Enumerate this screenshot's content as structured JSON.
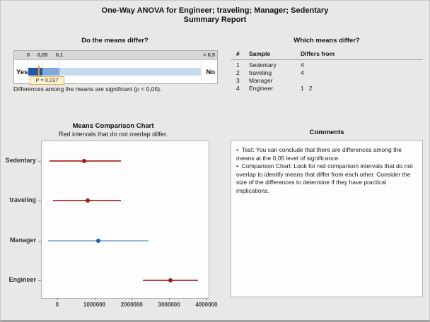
{
  "title": {
    "line1": "One-Way ANOVA for Engineer; traveling; Manager; Sedentary",
    "line2": "Summary Report"
  },
  "p_panel": {
    "title": "Do the means differ?",
    "ticks": [
      "0",
      "0,05",
      "0,1",
      "> 0,5"
    ],
    "yes_label": "Yes",
    "no_label": "No",
    "p_value": 0.037,
    "p_label": "P = 0,037",
    "caption": "Differences among the means are significant (p < 0,05).",
    "colors": {
      "significant": "#1e57a5",
      "marginal": "#7ea9d8",
      "not_significant": "#c7d9ee",
      "marker": "#ef9a1d"
    }
  },
  "differs_table": {
    "title": "Which means differ?",
    "columns": [
      "#",
      "Sample",
      "Differs from"
    ],
    "rows": [
      {
        "num": "1",
        "sample": "Sedentary",
        "differs": "4"
      },
      {
        "num": "2",
        "sample": "traveling",
        "differs": "4"
      },
      {
        "num": "3",
        "sample": "Manager",
        "differs": ""
      },
      {
        "num": "4",
        "sample": "Engineer",
        "differs": "1   2"
      }
    ]
  },
  "chart_data": {
    "type": "interval",
    "title": "Means Comparison Chart",
    "subtitle": "Red intervals that do not overlap differ.",
    "xlabel": "",
    "ylabel": "",
    "categories": [
      "Sedentary",
      "traveling",
      "Manager",
      "Engineer"
    ],
    "series": [
      {
        "name": "Sedentary",
        "mean": 730000,
        "ci": [
          -210000,
          1710000
        ],
        "differs": true
      },
      {
        "name": "traveling",
        "mean": 810000,
        "ci": [
          -100000,
          1710000
        ],
        "differs": true
      },
      {
        "name": "Manager",
        "mean": 1100000,
        "ci": [
          -250000,
          2440000
        ],
        "differs": false
      },
      {
        "name": "Engineer",
        "mean": 3040000,
        "ci": [
          2290000,
          3770000
        ],
        "differs": true
      }
    ],
    "x_ticks": [
      0,
      1000000,
      2000000,
      3000000,
      4000000
    ],
    "x_tick_labels": [
      "0",
      "1000000",
      "2000000",
      "3000000",
      "4000000"
    ],
    "xlim": [
      -430000,
      4040000
    ],
    "grid": false,
    "legend": false,
    "colors": {
      "differ_line": "#b2463d",
      "differ_dot": "#991f17",
      "no_differ_line": "#98b6d8",
      "no_differ_dot": "#1f5fa9"
    }
  },
  "comments": {
    "title": "Comments",
    "bullet": "•",
    "items": [
      "Test: You can conclude that there are differences among the means at the 0,05 level of significance.",
      "Comparison Chart: Look for red comparison intervals that do not overlap to identify means that differ from each other. Consider the size of the differences to determine if they have practical implications."
    ]
  }
}
